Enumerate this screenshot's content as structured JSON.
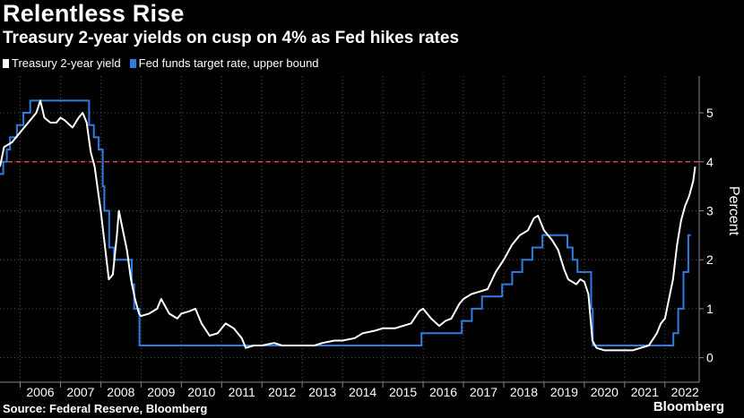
{
  "title": "Relentless Rise",
  "subtitle": "Treasury 2-year yields on cusp on 4% as Fed hikes rates",
  "legend": {
    "yield_label": "Treasury 2-year yield",
    "fed_label": "Fed funds target rate, upper bound"
  },
  "colors": {
    "background": "#000000",
    "yield": "#ffffff",
    "fed": "#2f7de1",
    "reference": "#e0433c",
    "grid": "#555555"
  },
  "footer": {
    "source": "Source: Federal Reserve, Bloomberg",
    "brand": "Bloomberg"
  },
  "chart_data": {
    "type": "line",
    "title": "Relentless Rise",
    "ylabel": "Percent",
    "xlabel": "",
    "xlim": [
      2005.5,
      2022.85
    ],
    "ylim": [
      -0.5,
      5.75
    ],
    "yticks": [
      0,
      1,
      2,
      3,
      4,
      5
    ],
    "xticks": [
      "2006",
      "2007",
      "2008",
      "2009",
      "2010",
      "2011",
      "2012",
      "2013",
      "2014",
      "2015",
      "2016",
      "2017",
      "2018",
      "2019",
      "2020",
      "2021",
      "2022"
    ],
    "grid": true,
    "reference_line": {
      "y": 4,
      "style": "dashed"
    },
    "series": [
      {
        "name": "Treasury 2-year yield",
        "x": [
          2005.5,
          2005.6,
          2005.8,
          2006.0,
          2006.2,
          2006.4,
          2006.5,
          2006.6,
          2006.75,
          2006.9,
          2007.0,
          2007.1,
          2007.3,
          2007.45,
          2007.55,
          2007.65,
          2007.75,
          2007.85,
          2007.95,
          2008.0,
          2008.1,
          2008.2,
          2008.3,
          2008.4,
          2008.45,
          2008.55,
          2008.65,
          2008.75,
          2008.85,
          2008.95,
          2009.0,
          2009.2,
          2009.4,
          2009.5,
          2009.7,
          2009.9,
          2010.0,
          2010.2,
          2010.35,
          2010.5,
          2010.7,
          2010.9,
          2011.0,
          2011.1,
          2011.3,
          2011.5,
          2011.6,
          2011.8,
          2012.0,
          2012.3,
          2012.5,
          2012.8,
          2013.0,
          2013.3,
          2013.5,
          2013.8,
          2014.0,
          2014.3,
          2014.5,
          2014.8,
          2015.0,
          2015.3,
          2015.5,
          2015.7,
          2015.9,
          2016.0,
          2016.2,
          2016.4,
          2016.55,
          2016.7,
          2016.9,
          2017.0,
          2017.2,
          2017.4,
          2017.6,
          2017.8,
          2018.0,
          2018.2,
          2018.4,
          2018.6,
          2018.75,
          2018.85,
          2019.0,
          2019.2,
          2019.35,
          2019.5,
          2019.6,
          2019.7,
          2019.8,
          2019.9,
          2020.0,
          2020.1,
          2020.2,
          2020.3,
          2020.5,
          2020.7,
          2020.9,
          2021.0,
          2021.2,
          2021.4,
          2021.6,
          2021.8,
          2021.9,
          2022.0,
          2022.1,
          2022.2,
          2022.3,
          2022.4,
          2022.5,
          2022.6,
          2022.7,
          2022.75
        ],
        "values": [
          3.9,
          4.3,
          4.4,
          4.6,
          4.8,
          5.0,
          5.25,
          4.9,
          4.8,
          4.8,
          4.9,
          4.85,
          4.7,
          4.9,
          5.0,
          4.8,
          4.2,
          3.9,
          3.3,
          3.0,
          2.3,
          1.6,
          1.7,
          2.5,
          3.0,
          2.6,
          2.2,
          1.6,
          1.2,
          0.9,
          0.85,
          0.9,
          1.0,
          1.2,
          0.9,
          0.8,
          0.9,
          0.95,
          1.0,
          0.7,
          0.45,
          0.5,
          0.6,
          0.7,
          0.6,
          0.4,
          0.2,
          0.25,
          0.25,
          0.3,
          0.25,
          0.25,
          0.25,
          0.25,
          0.3,
          0.35,
          0.35,
          0.4,
          0.5,
          0.55,
          0.6,
          0.6,
          0.65,
          0.7,
          0.95,
          1.0,
          0.8,
          0.65,
          0.75,
          0.8,
          1.1,
          1.2,
          1.3,
          1.35,
          1.4,
          1.75,
          2.0,
          2.3,
          2.5,
          2.6,
          2.85,
          2.9,
          2.6,
          2.4,
          2.2,
          1.8,
          1.6,
          1.55,
          1.5,
          1.6,
          1.55,
          1.3,
          0.35,
          0.2,
          0.15,
          0.15,
          0.15,
          0.15,
          0.15,
          0.2,
          0.25,
          0.5,
          0.7,
          0.8,
          1.2,
          1.6,
          2.3,
          2.8,
          3.1,
          3.3,
          3.6,
          3.9
        ]
      },
      {
        "name": "Fed funds target rate, upper bound",
        "x": [
          2005.5,
          2005.58,
          2005.58,
          2005.67,
          2005.67,
          2005.75,
          2005.75,
          2005.92,
          2005.92,
          2006.08,
          2006.08,
          2006.25,
          2006.25,
          2006.33,
          2006.33,
          2006.48,
          2006.48,
          2007.71,
          2007.71,
          2007.83,
          2007.83,
          2007.95,
          2007.95,
          2008.05,
          2008.05,
          2008.09,
          2008.09,
          2008.21,
          2008.21,
          2008.33,
          2008.33,
          2008.77,
          2008.77,
          2008.83,
          2008.83,
          2008.96,
          2008.96,
          2015.96,
          2015.96,
          2016.96,
          2016.96,
          2017.21,
          2017.21,
          2017.46,
          2017.46,
          2017.96,
          2017.96,
          2018.21,
          2018.21,
          2018.46,
          2018.46,
          2018.71,
          2018.71,
          2018.96,
          2018.96,
          2019.58,
          2019.58,
          2019.71,
          2019.71,
          2019.83,
          2019.83,
          2020.17,
          2020.17,
          2020.21,
          2020.21,
          2022.21,
          2022.21,
          2022.33,
          2022.33,
          2022.46,
          2022.46,
          2022.58,
          2022.58,
          2022.64
        ],
        "values": [
          3.75,
          3.75,
          4.0,
          4.0,
          4.25,
          4.25,
          4.5,
          4.5,
          4.75,
          4.75,
          5.0,
          5.0,
          5.25,
          5.25,
          5.25,
          5.25,
          5.25,
          5.25,
          4.75,
          4.75,
          4.5,
          4.5,
          4.25,
          4.25,
          3.5,
          3.5,
          3.0,
          3.0,
          2.25,
          2.25,
          2.0,
          2.0,
          1.5,
          1.5,
          1.0,
          1.0,
          0.25,
          0.25,
          0.5,
          0.5,
          0.75,
          0.75,
          1.0,
          1.0,
          1.25,
          1.25,
          1.5,
          1.5,
          1.75,
          1.75,
          2.0,
          2.0,
          2.25,
          2.25,
          2.5,
          2.5,
          2.25,
          2.25,
          2.0,
          2.0,
          1.75,
          1.75,
          1.0,
          1.0,
          0.25,
          0.25,
          0.5,
          0.5,
          1.0,
          1.0,
          1.75,
          1.75,
          2.5,
          2.5
        ]
      }
    ]
  }
}
